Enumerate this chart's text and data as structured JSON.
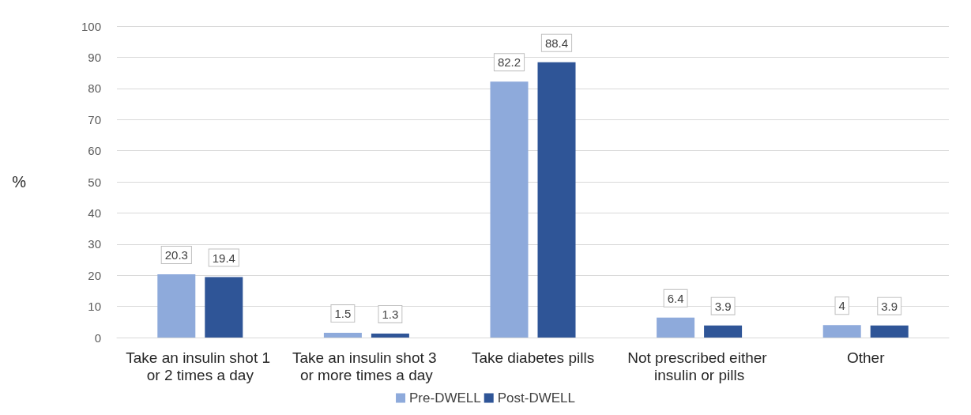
{
  "chart_data": {
    "type": "bar",
    "ylabel": "%",
    "categories": [
      "Take an insulin shot 1 or 2 times a day",
      "Take an insulin shot 3 or more times a day",
      "Take diabetes pills",
      "Not prescribed either insulin or pills",
      "Other"
    ],
    "series": [
      {
        "name": "Pre-DWELL",
        "color": "#8eaadb",
        "values": [
          20.3,
          1.5,
          82.2,
          6.4,
          4
        ]
      },
      {
        "name": "Post-DWELL",
        "color": "#2f5597",
        "values": [
          19.4,
          1.3,
          88.4,
          3.9,
          3.9
        ]
      }
    ],
    "ylim": [
      0,
      100
    ],
    "yticks": [
      0,
      10,
      20,
      30,
      40,
      50,
      60,
      70,
      80,
      90,
      100
    ],
    "grid": "y",
    "legend": "bottom",
    "data_labels": true
  }
}
